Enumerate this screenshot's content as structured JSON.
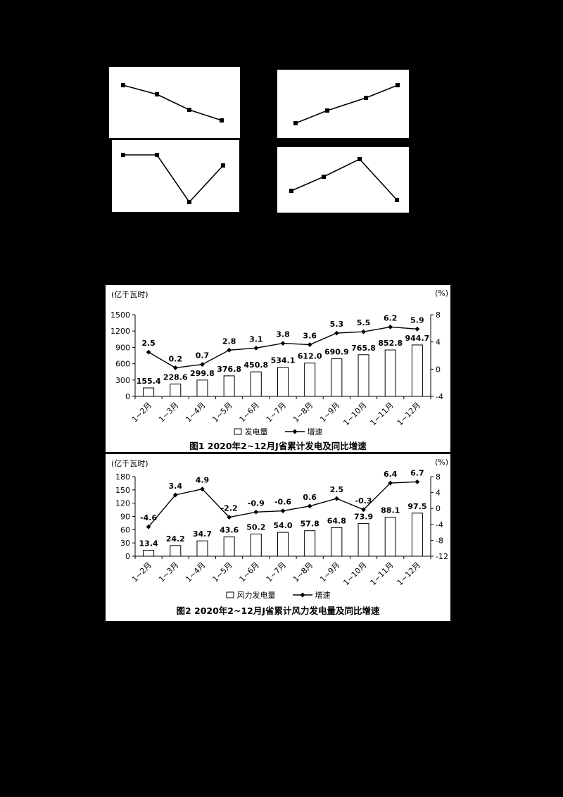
{
  "page": {
    "background": "#000000",
    "panel_background": "#ffffff",
    "ink": "#000000"
  },
  "chart_data": [
    {
      "type": "bar+line",
      "title": "图1 2020年2~12月J省累计发电及同比增速",
      "ylabel_left": "(亿千瓦时)",
      "ylabel_right": "(%)",
      "categories": [
        "1~2月",
        "1~3月",
        "1~4月",
        "1~5月",
        "1~6月",
        "1~7月",
        "1~8月",
        "1~9月",
        "1~10月",
        "1~11月",
        "1~12月"
      ],
      "series": [
        {
          "name": "发电量",
          "type": "bar",
          "axis": "left",
          "values": [
            155.4,
            228.6,
            299.8,
            376.8,
            450.8,
            534.1,
            612.0,
            690.9,
            765.8,
            852.8,
            944.7
          ]
        },
        {
          "name": "增速",
          "type": "line",
          "axis": "right",
          "values": [
            2.5,
            0.2,
            0.7,
            2.8,
            3.1,
            3.8,
            3.6,
            5.3,
            5.5,
            6.2,
            5.9
          ]
        }
      ],
      "ylim_left": [
        0,
        1500
      ],
      "yticks_left": [
        0,
        300,
        600,
        900,
        1200,
        1500
      ],
      "ylim_right": [
        -4,
        8
      ],
      "yticks_right": [
        -4,
        0,
        4,
        8
      ],
      "legend_position": "bottom",
      "grid": false
    },
    {
      "type": "bar+line",
      "title": "图2 2020年2~12月J省累计风力发电量及同比增速",
      "ylabel_left": "(亿千瓦时)",
      "ylabel_right": "(%)",
      "categories": [
        "1~2月",
        "1~3月",
        "1~4月",
        "1~5月",
        "1~6月",
        "1~7月",
        "1~8月",
        "1~9月",
        "1~10月",
        "1~11月",
        "1~12月"
      ],
      "series": [
        {
          "name": "风力发电量",
          "type": "bar",
          "axis": "left",
          "values": [
            13.4,
            24.2,
            34.7,
            43.6,
            50.2,
            54.0,
            57.8,
            64.8,
            73.9,
            88.1,
            97.5
          ]
        },
        {
          "name": "增速",
          "type": "line",
          "axis": "right",
          "values": [
            -4.6,
            3.4,
            4.9,
            -2.2,
            -0.9,
            -0.6,
            0.6,
            2.5,
            -0.3,
            6.4,
            6.7
          ]
        }
      ],
      "ylim_left": [
        0,
        180
      ],
      "yticks_left": [
        0,
        30,
        60,
        90,
        120,
        150,
        180
      ],
      "ylim_right": [
        -12,
        8
      ],
      "yticks_right": [
        -12,
        -8,
        -4,
        0,
        4,
        8
      ],
      "legend_position": "bottom",
      "grid": false
    }
  ],
  "trend_panels": [
    {
      "name": "trend-panel-1",
      "shape": "declining",
      "points": [
        [
          20,
          26
        ],
        [
          68,
          39
        ],
        [
          114,
          61
        ],
        [
          160,
          76
        ]
      ]
    },
    {
      "name": "trend-panel-2",
      "shape": "rising",
      "points": [
        [
          26,
          76
        ],
        [
          71,
          58
        ],
        [
          126,
          40
        ],
        [
          171,
          22
        ]
      ]
    },
    {
      "name": "trend-panel-3",
      "shape": "flat-dip-recover",
      "points": [
        [
          16,
          21
        ],
        [
          64,
          21
        ],
        [
          110,
          88
        ],
        [
          158,
          36
        ]
      ]
    },
    {
      "name": "trend-panel-4",
      "shape": "rise-peak-fall",
      "points": [
        [
          20,
          62
        ],
        [
          66,
          42
        ],
        [
          117,
          17
        ],
        [
          170,
          75
        ]
      ]
    }
  ]
}
